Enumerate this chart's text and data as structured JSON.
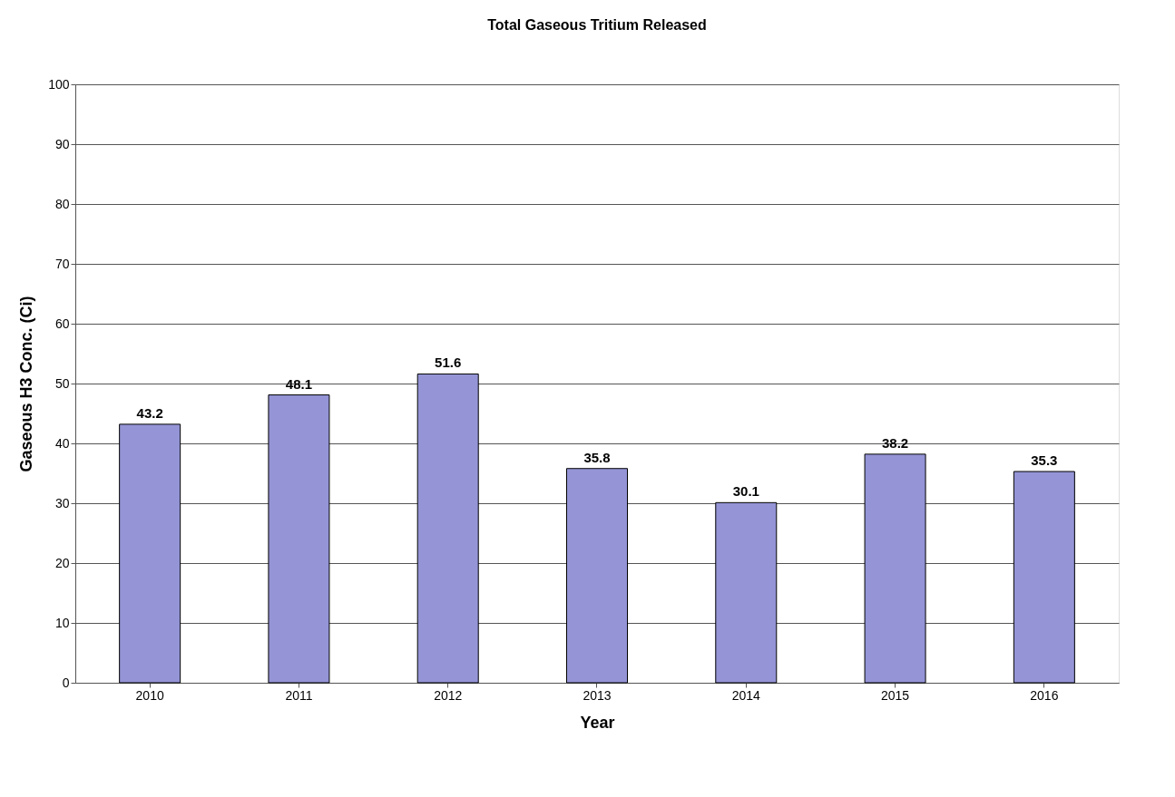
{
  "chart_data": {
    "type": "bar",
    "title": "Total Gaseous Tritium Released",
    "xlabel": "Year",
    "ylabel": "Gaseous H3 Conc. (Ci)",
    "categories": [
      "2010",
      "2011",
      "2012",
      "2013",
      "2014",
      "2015",
      "2016"
    ],
    "values": [
      43.2,
      48.1,
      51.6,
      35.8,
      30.1,
      38.2,
      35.3
    ],
    "color": "#9494d6",
    "ylim": [
      0,
      100
    ],
    "yticks": [
      0,
      10,
      20,
      30,
      40,
      50,
      60,
      70,
      80,
      90,
      100
    ],
    "grid": "y",
    "data_labels": true
  }
}
